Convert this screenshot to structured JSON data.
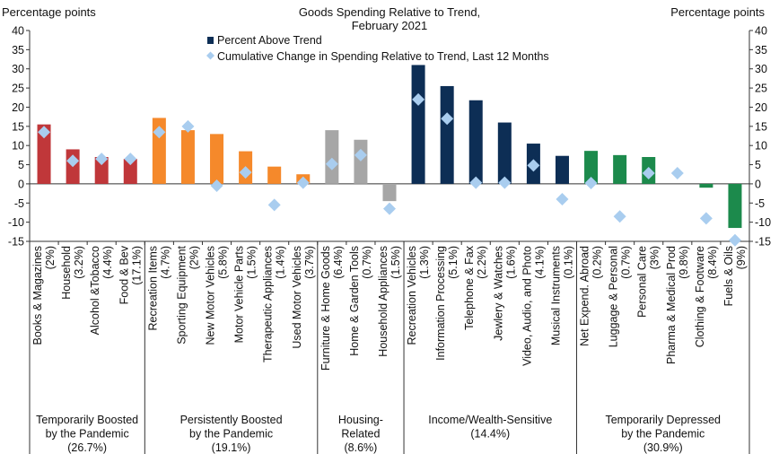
{
  "chart_data": {
    "type": "bar",
    "title": [
      "Goods Spending Relative to Trend,",
      "February 2021"
    ],
    "ylabel_left": "Percentage points",
    "ylabel_right": "Percentage points",
    "ylim": [
      -15,
      40
    ],
    "yticks": [
      -15,
      -10,
      -5,
      0,
      5,
      10,
      15,
      20,
      25,
      30,
      35,
      40
    ],
    "legend_position": "top-center",
    "legend": {
      "bar": "Percent Above Trend",
      "marker": "Cumulative Change in Spending Relative to Trend, Last 12 Months"
    },
    "colors": {
      "Temporarily Boosted": "#c0373a",
      "Persistently Boosted": "#f5892b",
      "Housing-Related": "#a6a6a6",
      "Income/Wealth-Sensitive": "#0d2e55",
      "Temporarily Depressed": "#1c8a4c",
      "marker": "#a9cdef",
      "legend_bar": "#0d2e55"
    },
    "groups": [
      {
        "label": [
          "Temporarily Boosted",
          "by the Pandemic",
          "(26.7%)"
        ],
        "key": "Temporarily Boosted",
        "count": 4
      },
      {
        "label": [
          "Persistently Boosted",
          "by the Pandemic",
          "(19.1%)"
        ],
        "key": "Persistently Boosted",
        "count": 6
      },
      {
        "label": [
          "Housing-",
          "Related",
          "(8.6%)"
        ],
        "key": "Housing-Related",
        "count": 3
      },
      {
        "label": [
          "Income/Wealth-Sensitive",
          "(14.4%)"
        ],
        "key": "Income/Wealth-Sensitive",
        "count": 6
      },
      {
        "label": [
          "Temporarily Depressed",
          "by the Pandemic",
          "(30.9%)"
        ],
        "key": "Temporarily Depressed",
        "count": 6
      }
    ],
    "categories": [
      [
        "Books & Magazines",
        "(2%)"
      ],
      [
        "Household",
        "(3.2%)"
      ],
      [
        "Alcohol &Tobacco",
        "(4.4%)"
      ],
      [
        "Food & Bev",
        "(17.1%)"
      ],
      [
        "Recreation Items",
        "(4.7%)"
      ],
      [
        "Sporting Equipment",
        "(2%)"
      ],
      [
        "New Motor Vehicles",
        "(5.8%)"
      ],
      [
        "Motor Vehicle Parts",
        "(1.5%)"
      ],
      [
        "Therapeutic Appliances",
        "(1.4%)"
      ],
      [
        "Used Motor Vehicles",
        "(3.7%)"
      ],
      [
        "Furniture & Home Goods",
        "(6.4%)"
      ],
      [
        "Home & Garden Tools",
        "(0.7%)"
      ],
      [
        "Household Appliances",
        "(1.5%)"
      ],
      [
        "Recreation Vehicles",
        "(1.3%)"
      ],
      [
        "Information Processing",
        "(5.1%)"
      ],
      [
        "Telephone & Fax",
        "(2.2%)"
      ],
      [
        "Jewlery & Watches",
        "(1.6%)"
      ],
      [
        "Video, Audio, and Photo",
        "(4.1%)"
      ],
      [
        "Musical Instruments",
        "(0.1%)"
      ],
      [
        "Net Expend. Abroad",
        "(0.2%)"
      ],
      [
        "Luggage & Personal",
        "(0.7%)"
      ],
      [
        "Personal Care",
        "(3%)"
      ],
      [
        "Pharma & Medical Prod",
        "(9.8%)"
      ],
      [
        "Clothing & Footware",
        "(8.4%)"
      ],
      [
        "Fuels & Oils",
        "(9%)"
      ]
    ],
    "series": [
      {
        "name": "Percent Above Trend",
        "kind": "bar",
        "values": [
          15.5,
          9.0,
          7.0,
          6.5,
          17.2,
          14.0,
          13.0,
          8.5,
          4.5,
          2.5,
          14.0,
          11.5,
          -4.5,
          31.0,
          25.5,
          21.8,
          16.0,
          10.5,
          7.3,
          8.6,
          7.5,
          7.0,
          0.0,
          -1.0,
          -11.5
        ]
      },
      {
        "name": "Cumulative Change in Spending Relative to Trend, Last 12 Months",
        "kind": "marker",
        "values": [
          13.5,
          6.0,
          6.5,
          6.5,
          13.5,
          15.0,
          -0.5,
          3.0,
          -5.5,
          0.3,
          5.2,
          7.5,
          -6.5,
          22.0,
          17.0,
          0.3,
          0.3,
          4.8,
          -4.0,
          0.2,
          -8.5,
          2.8,
          2.8,
          -9.0,
          -14.7
        ]
      }
    ]
  }
}
